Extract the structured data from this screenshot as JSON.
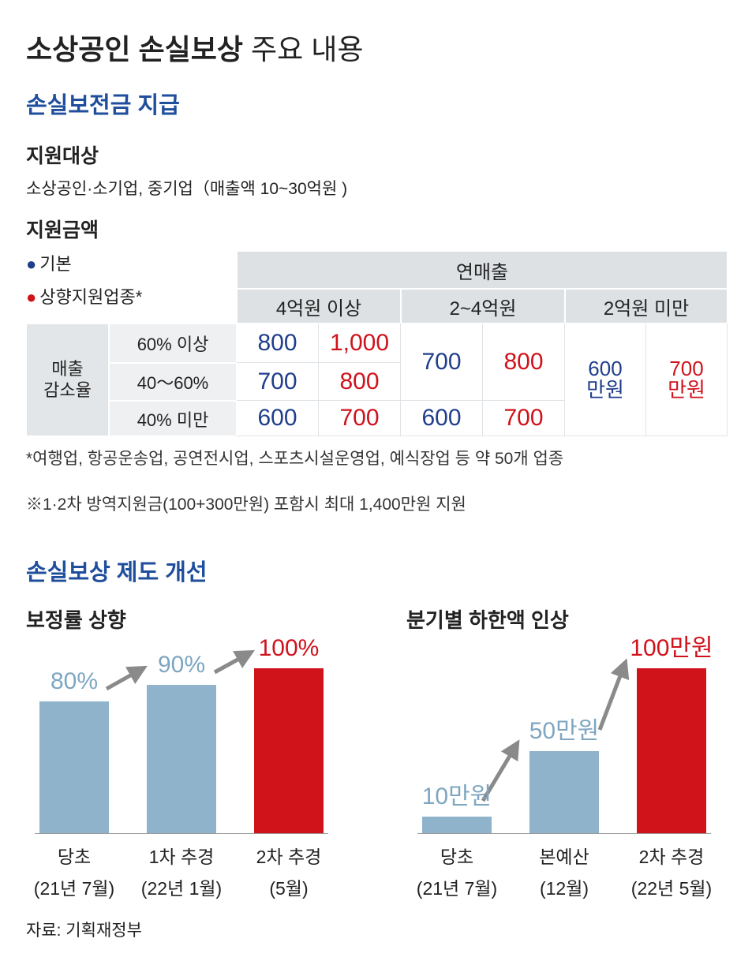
{
  "header": {
    "title_bold": "소상공인 손실보상",
    "title_light": "주요 내용"
  },
  "section1": {
    "heading": "손실보전금 지급",
    "target_label": "지원대상",
    "target_text": "소상공인·소기업, 중기업（매출액 10~30억원 )",
    "amount_label": "지원금액",
    "legend": [
      {
        "name": "기본",
        "color": "#1f3e8c"
      },
      {
        "name": "상향지원업종*",
        "color": "#d0121b"
      }
    ],
    "table": {
      "header": "연매출",
      "groups": [
        "4억원 이상",
        "2~4억원",
        "2억원 미만"
      ],
      "row_header": "매출\n감소율",
      "rows": [
        "60% 이상",
        "40～60%",
        "40% 미만"
      ],
      "cells": [
        [
          "800",
          "1,000",
          "700",
          "800",
          "600\n만원",
          "700\n만원"
        ],
        [
          "700",
          "800"
        ],
        [
          "600",
          "700",
          "600",
          "700"
        ]
      ]
    },
    "notes": [
      "*여행업, 항공운송업, 공연전시업, 스포츠시설운영업, 예식장업 등 약 50개 업종",
      "※1·2차 방역지원금(100+300만원) 포함시 최대 1,400만원 지원"
    ]
  },
  "section2": {
    "heading": "손실보상 제도 개선"
  },
  "chart_data": [
    {
      "type": "bar",
      "title": "보정률 상향",
      "categories": [
        "당초\n(21년 7월)",
        "1차 추경\n(22년 1월)",
        "2차 추경\n(5월)"
      ],
      "values": [
        80,
        90,
        100
      ],
      "value_labels": [
        "80%",
        "90%",
        "100%"
      ],
      "colors": [
        "#8fb3cb",
        "#8fb3cb",
        "#d0121b"
      ],
      "label_colors": [
        "#7ea6c2",
        "#7ea6c2",
        "#d0121b"
      ],
      "ylim": [
        0,
        100
      ]
    },
    {
      "type": "bar",
      "title": "분기별 하한액 인상",
      "categories": [
        "당초\n(21년 7월)",
        "본예산\n(12월)",
        "2차 추경\n(22년 5월)"
      ],
      "values": [
        10,
        50,
        100
      ],
      "value_labels": [
        "10만원",
        "50만원",
        "100만원"
      ],
      "colors": [
        "#8fb3cb",
        "#8fb3cb",
        "#d0121b"
      ],
      "label_colors": [
        "#7ea6c2",
        "#7ea6c2",
        "#d0121b"
      ],
      "ylim": [
        0,
        100
      ]
    }
  ],
  "source": "자료: 기획재정부"
}
